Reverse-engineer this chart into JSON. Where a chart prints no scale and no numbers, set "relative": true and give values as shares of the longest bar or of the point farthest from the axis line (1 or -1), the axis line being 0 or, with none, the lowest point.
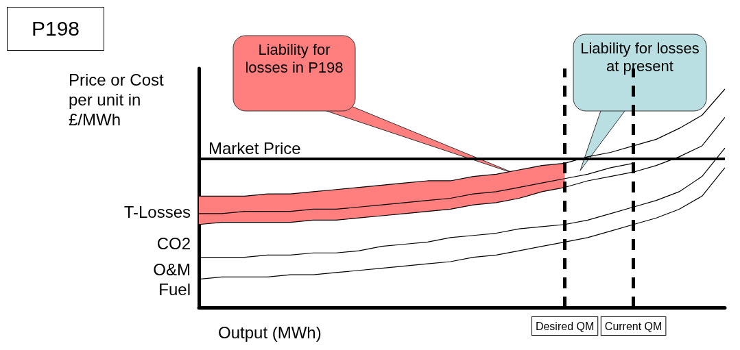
{
  "chart_data": {
    "type": "line",
    "relative": true,
    "title": "P198",
    "ylabel": "Price or Cost per unit in £/MWh",
    "xlabel": "Output (MWh)",
    "categories": [
      null,
      null,
      null,
      null,
      null,
      null,
      null,
      null,
      null,
      null,
      null,
      null,
      null,
      null,
      null,
      null,
      "Desired QM",
      null,
      null,
      "Current QM",
      null,
      null,
      null,
      null
    ],
    "series": [
      {
        "color": "#000000",
        "values": [
          0.51,
          0.51,
          0.51,
          0.52,
          0.52,
          0.53,
          0.54,
          0.55,
          0.56,
          0.57,
          0.58,
          0.58,
          0.6,
          0.61,
          0.63,
          0.65,
          0.66,
          0.69,
          0.71,
          0.74,
          0.77,
          0.82,
          0.88,
          1
        ]
      },
      {
        "color": "#000000",
        "values": [
          0.43,
          0.43,
          0.44,
          0.44,
          0.44,
          0.45,
          0.45,
          0.46,
          0.47,
          0.48,
          0.49,
          0.5,
          0.52,
          0.53,
          0.55,
          0.57,
          0.59,
          0.61,
          0.64,
          0.66,
          null,
          null,
          null,
          null
        ],
        "lower": [
          0.38,
          0.39,
          0.39,
          0.39,
          0.39,
          0.4,
          0.4,
          0.41,
          0.42,
          0.43,
          0.44,
          0.45,
          0.47,
          0.48,
          0.5,
          0.53,
          0.55,
          null,
          null,
          null,
          null,
          null,
          null,
          null
        ],
        "upper": [
          0.51,
          0.51,
          0.51,
          0.52,
          0.52,
          0.53,
          0.54,
          0.55,
          0.56,
          0.57,
          0.58,
          0.58,
          0.6,
          0.61,
          0.63,
          0.65,
          0.66,
          null,
          null,
          null,
          null,
          null,
          null,
          null
        ]
      },
      {
        "color": "#000000",
        "values": [
          0.38,
          0.39,
          0.39,
          0.39,
          0.39,
          0.4,
          0.4,
          0.41,
          0.42,
          0.43,
          0.44,
          0.45,
          0.47,
          0.48,
          0.5,
          0.53,
          0.55,
          0.58,
          0.6,
          0.62,
          0.65,
          0.69,
          0.74,
          0.87
        ]
      },
      {
        "color": "#000000",
        "values": [
          0.23,
          0.23,
          0.23,
          0.24,
          0.24,
          0.25,
          0.25,
          0.26,
          0.28,
          0.29,
          0.3,
          0.32,
          0.33,
          0.34,
          0.36,
          0.37,
          0.38,
          0.4,
          0.43,
          0.46,
          0.49,
          0.53,
          0.6,
          0.73
        ]
      },
      {
        "color": "#000000",
        "values": [
          0.13,
          0.14,
          0.14,
          0.14,
          0.15,
          0.15,
          0.16,
          0.17,
          0.18,
          0.19,
          0.2,
          0.21,
          0.23,
          0.24,
          0.26,
          0.28,
          0.3,
          0.32,
          0.35,
          0.38,
          0.41,
          0.45,
          0.51,
          0.64
        ]
      }
    ],
    "ref_lines": [
      {
        "axis": "y",
        "value": 0.68,
        "label": "Market Price",
        "color": "#000000",
        "line_style": "solid"
      },
      {
        "axis": "x",
        "value": "Desired QM",
        "color": "#000000",
        "line_style": "dashed"
      },
      {
        "axis": "x",
        "value": "Current QM",
        "color": "#000000",
        "line_style": "dashed"
      }
    ],
    "annotations": [
      "Liability for losses in P198",
      "Liability for losses at present",
      "T-Losses",
      "CO2",
      "O&M",
      "Fuel"
    ],
    "grid": false,
    "marker": "none"
  }
}
